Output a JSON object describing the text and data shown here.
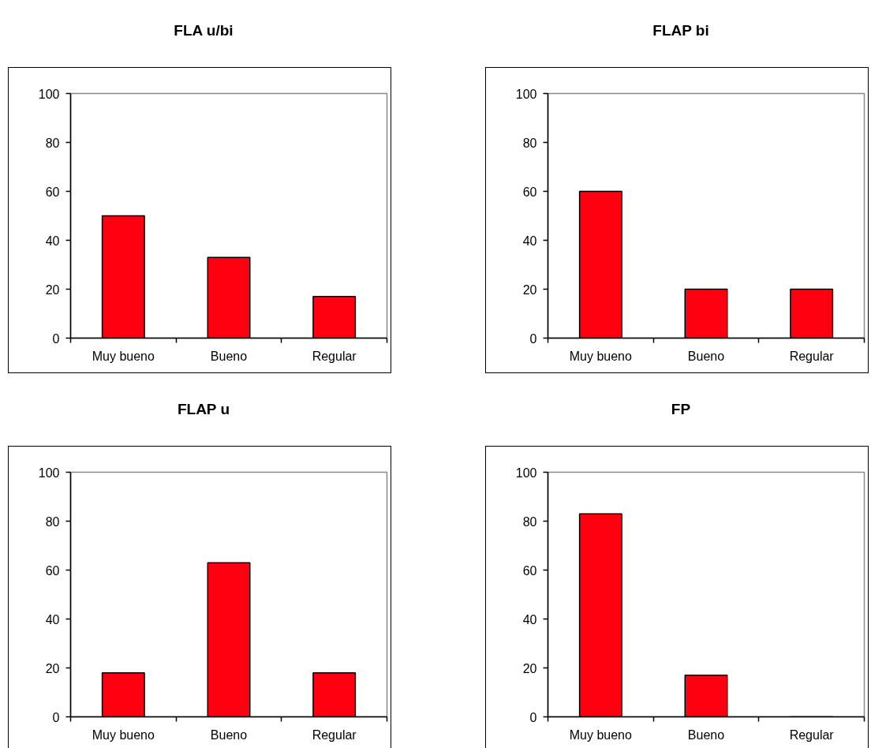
{
  "chart_data": [
    {
      "type": "bar",
      "title": "FLA u/bi",
      "categories": [
        "Muy bueno",
        "Bueno",
        "Regular"
      ],
      "values": [
        50,
        33,
        17
      ],
      "color": "#ff0010",
      "ylim": [
        0,
        100
      ],
      "yticks": [
        0,
        20,
        40,
        60,
        80,
        100
      ],
      "grid": false
    },
    {
      "type": "bar",
      "title": "FLAP bi",
      "categories": [
        "Muy bueno",
        "Bueno",
        "Regular"
      ],
      "values": [
        60,
        20,
        20
      ],
      "color": "#ff0010",
      "ylim": [
        0,
        100
      ],
      "yticks": [
        0,
        20,
        40,
        60,
        80,
        100
      ],
      "grid": false
    },
    {
      "type": "bar",
      "title": "FLAP u",
      "categories": [
        "Muy bueno",
        "Bueno",
        "Regular"
      ],
      "values": [
        18,
        63,
        18
      ],
      "color": "#ff0010",
      "ylim": [
        0,
        100
      ],
      "yticks": [
        0,
        20,
        40,
        60,
        80,
        100
      ],
      "grid": false
    },
    {
      "type": "bar",
      "title": "FP",
      "categories": [
        "Muy bueno",
        "Bueno",
        "Regular"
      ],
      "values": [
        83,
        17,
        0
      ],
      "color": "#ff0010",
      "ylim": [
        0,
        100
      ],
      "yticks": [
        0,
        20,
        40,
        60,
        80,
        100
      ],
      "grid": false
    }
  ]
}
